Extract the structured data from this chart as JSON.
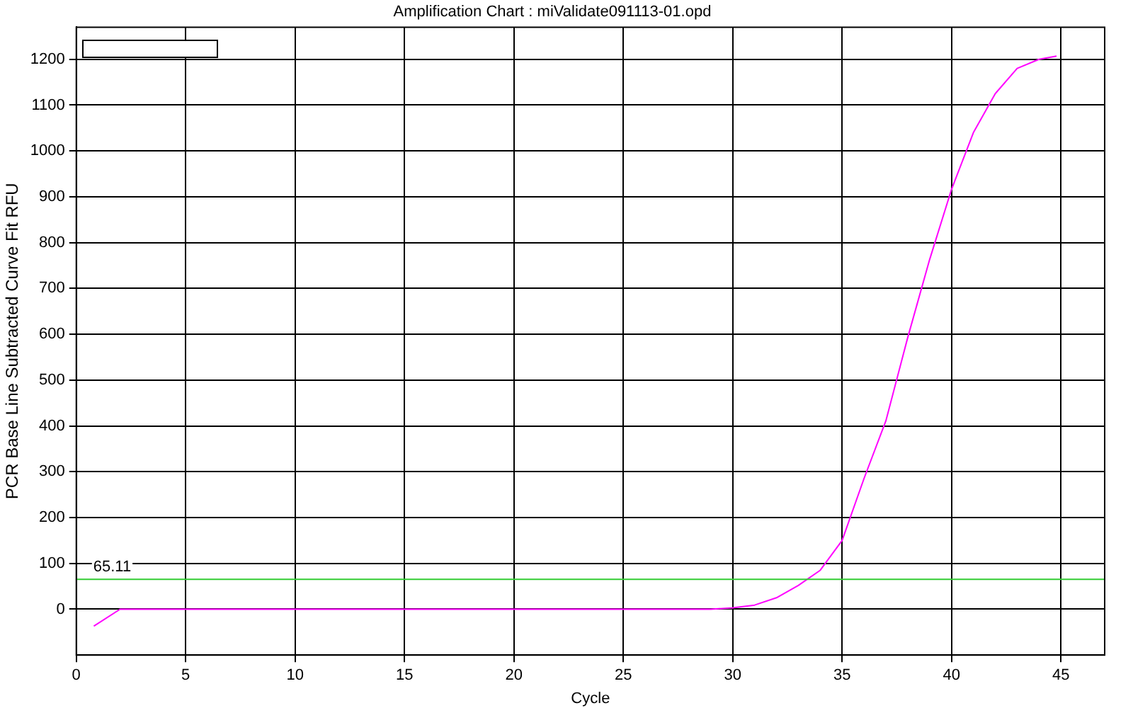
{
  "chart_data": {
    "type": "line",
    "title": "Amplification Chart : miValidate091113-01.opd",
    "xlabel": "Cycle",
    "ylabel": "PCR Base Line Subtracted Curve Fit RFU",
    "xlim": [
      0,
      47
    ],
    "xticks": [
      0,
      5,
      10,
      15,
      20,
      25,
      30,
      35,
      40,
      45
    ],
    "ylim": [
      -100,
      1270
    ],
    "yticks": [
      0,
      100,
      200,
      300,
      400,
      500,
      600,
      700,
      800,
      900,
      1000,
      1100,
      1200
    ],
    "grid": true,
    "legend": false,
    "marker": "none",
    "line_style": "solid",
    "series": [
      {
        "color": "#ff00ff",
        "x": [
          0.8,
          2,
          29,
          30,
          31,
          32,
          33,
          34,
          35,
          36,
          37,
          38,
          39,
          40,
          41,
          42,
          43,
          44,
          44.8
        ],
        "values": [
          -37,
          0,
          0,
          3,
          9,
          25,
          52,
          85,
          150,
          285,
          411,
          593,
          763,
          916,
          1040,
          1125,
          1180,
          1200,
          1207
        ]
      }
    ],
    "ref_lines": [
      {
        "axis": "y",
        "value": 65.11,
        "label": "65.11",
        "color": "#33cc33"
      }
    ]
  }
}
